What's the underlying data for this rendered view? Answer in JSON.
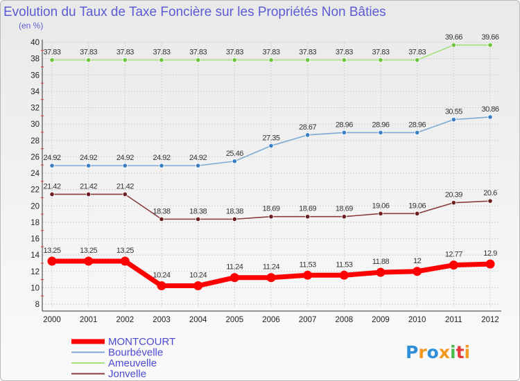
{
  "chart_data": {
    "type": "line",
    "title": "Evolution du Taux de Taxe Foncière sur les Propriétés Non Bâties",
    "subtitle": "(en %)",
    "xlabel": "",
    "ylabel": "",
    "categories": [
      "2000",
      "2001",
      "2002",
      "2003",
      "2004",
      "2005",
      "2006",
      "2007",
      "2008",
      "2009",
      "2010",
      "2011",
      "2012"
    ],
    "ylim": [
      8,
      40
    ],
    "yticks": [
      8,
      10,
      12,
      14,
      16,
      18,
      20,
      22,
      24,
      26,
      28,
      30,
      32,
      34,
      36,
      38,
      40
    ],
    "grid": true,
    "legend_position": "bottom-left",
    "series": [
      {
        "name": "MONTCOURT",
        "color": "#ff0000",
        "point_color": "#ff0000",
        "values": [
          13.25,
          13.25,
          13.25,
          10.24,
          10.24,
          11.24,
          11.24,
          11.53,
          11.53,
          11.88,
          12,
          12.77,
          12.9
        ],
        "labels": [
          "13.25",
          "13.25",
          "13.25",
          "10.24",
          "10.24",
          "11.24",
          "11.24",
          "11.53",
          "11.53",
          "11.88",
          "12",
          "12.77",
          "12.9"
        ]
      },
      {
        "name": "Bourbévelle",
        "color": "#7ea9d6",
        "point_color": "#3a7fc4",
        "values": [
          24.92,
          24.92,
          24.92,
          24.92,
          24.92,
          25.46,
          27.35,
          28.67,
          28.96,
          28.96,
          28.96,
          30.55,
          30.86
        ],
        "labels": [
          "24.92",
          "24.92",
          "24.92",
          "24.92",
          "24.92",
          "25.46",
          "27.35",
          "28.67",
          "28.96",
          "28.96",
          "28.96",
          "30.55",
          "30.86"
        ]
      },
      {
        "name": "Ameuvelle",
        "color": "#a6e07a",
        "point_color": "#6cc23a",
        "values": [
          37.83,
          37.83,
          37.83,
          37.83,
          37.83,
          37.83,
          37.83,
          37.83,
          37.83,
          37.83,
          37.83,
          39.66,
          39.66
        ],
        "labels": [
          "37.83",
          "37.83",
          "37.83",
          "37.83",
          "37.83",
          "37.83",
          "37.83",
          "37.83",
          "37.83",
          "37.83",
          "37.83",
          "39.66",
          "39.66"
        ]
      },
      {
        "name": "Jonvelle",
        "color": "#8a3a3a",
        "point_color": "#6b1f1f",
        "values": [
          21.42,
          21.42,
          21.42,
          18.38,
          18.38,
          18.38,
          18.69,
          18.69,
          18.69,
          19.06,
          19.06,
          20.39,
          20.6
        ],
        "labels": [
          "21.42",
          "21.42",
          "21.42",
          "18.38",
          "18.38",
          "18.38",
          "18.69",
          "18.69",
          "18.69",
          "19.06",
          "19.06",
          "20.39",
          "20.6"
        ]
      }
    ]
  },
  "logo": {
    "text": "Proxiti",
    "colors": [
      "#2f8fd8",
      "#f29a1f",
      "#2f8fd8",
      "#f29a1f",
      "#4bb84b",
      "#e63a3a",
      "#f29a1f"
    ]
  }
}
